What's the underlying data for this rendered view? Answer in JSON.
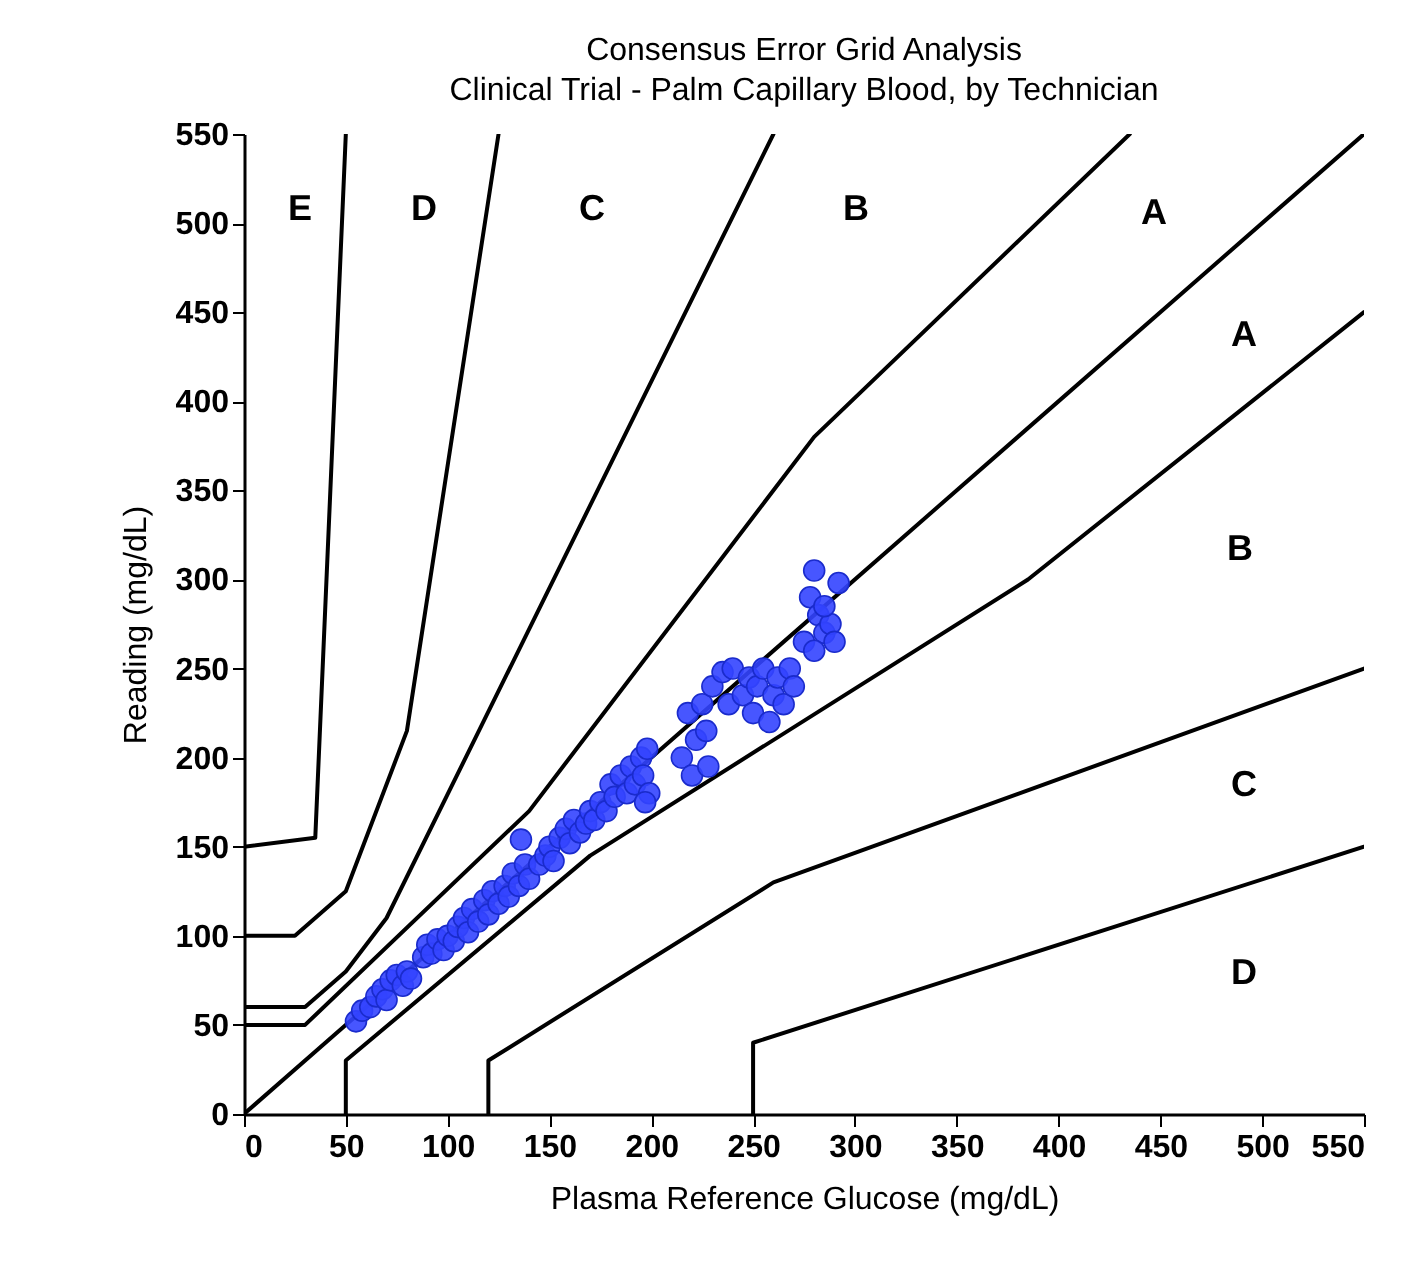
{
  "chart_data": {
    "type": "scatter",
    "title": "Consensus Error Grid Analysis",
    "subtitle": "Clinical Trial - Palm Capillary Blood, by Technician",
    "xlabel": "Plasma Reference Glucose (mg/dL)",
    "ylabel": "Reading (mg/dL)",
    "xlim": [
      0,
      550
    ],
    "ylim": [
      0,
      550
    ],
    "xticks": [
      0,
      50,
      100,
      150,
      200,
      250,
      300,
      350,
      400,
      450,
      500,
      550
    ],
    "yticks": [
      0,
      50,
      100,
      150,
      200,
      250,
      300,
      350,
      400,
      450,
      500,
      550
    ],
    "grid": false,
    "series": [
      {
        "type": "line",
        "color": "#000000",
        "x": [
          0,
          550
        ],
        "values": [
          0,
          550
        ]
      },
      {
        "type": "line",
        "color": "#000000",
        "x": [
          0,
          30,
          140,
          280,
          435
        ],
        "values": [
          50,
          50,
          170,
          380,
          550
        ]
      },
      {
        "type": "line",
        "color": "#000000",
        "x": [
          50,
          50,
          170,
          385,
          550
        ],
        "values": [
          0,
          30,
          145,
          300,
          450
        ]
      },
      {
        "type": "line",
        "color": "#000000",
        "x": [
          0,
          30,
          50,
          70,
          260
        ],
        "values": [
          60,
          60,
          80,
          110,
          550
        ]
      },
      {
        "type": "line",
        "color": "#000000",
        "x": [
          120,
          120,
          260,
          550
        ],
        "values": [
          0,
          30,
          130,
          250
        ]
      },
      {
        "type": "line",
        "color": "#000000",
        "x": [
          0,
          25,
          50,
          80,
          125
        ],
        "values": [
          100,
          100,
          125,
          215,
          550
        ]
      },
      {
        "type": "line",
        "color": "#000000",
        "x": [
          250,
          250,
          550
        ],
        "values": [
          0,
          40,
          150
        ]
      },
      {
        "type": "line",
        "color": "#000000",
        "x": [
          0,
          35,
          50
        ],
        "values": [
          150,
          155,
          550
        ]
      },
      {
        "marker": "circle",
        "color": "#3344ff",
        "x": [
          55,
          58,
          62,
          65,
          68,
          70,
          72,
          75,
          78,
          80,
          82,
          88,
          90,
          92,
          95,
          98,
          100,
          103,
          105,
          108,
          110,
          112,
          115,
          118,
          120,
          122,
          125,
          128,
          130,
          132,
          135,
          136,
          138,
          140,
          145,
          148,
          150,
          152,
          155,
          158,
          160,
          162,
          165,
          168,
          170,
          172,
          175,
          178,
          180,
          182,
          185,
          188,
          190,
          192,
          195,
          196,
          198,
          199,
          197,
          215,
          218,
          220,
          222,
          225,
          227,
          228,
          230,
          235,
          238,
          240,
          245,
          248,
          250,
          252,
          255,
          258,
          260,
          262,
          265,
          268,
          270,
          275,
          278,
          280,
          282,
          285,
          288,
          290,
          292,
          285,
          280
        ],
        "values": [
          52,
          58,
          60,
          66,
          70,
          64,
          75,
          78,
          72,
          80,
          76,
          88,
          95,
          90,
          98,
          92,
          100,
          97,
          105,
          110,
          102,
          115,
          108,
          120,
          112,
          125,
          118,
          128,
          122,
          135,
          128,
          154,
          140,
          132,
          140,
          145,
          150,
          142,
          155,
          160,
          152,
          165,
          158,
          163,
          170,
          165,
          175,
          170,
          185,
          178,
          190,
          180,
          195,
          185,
          200,
          190,
          205,
          180,
          175,
          200,
          225,
          190,
          210,
          230,
          215,
          195,
          240,
          248,
          230,
          250,
          235,
          245,
          225,
          240,
          250,
          220,
          235,
          245,
          230,
          250,
          240,
          265,
          290,
          305,
          280,
          270,
          275,
          265,
          298,
          285,
          260
        ]
      }
    ],
    "annotations": [
      "E",
      "D",
      "C",
      "B",
      "A",
      "A",
      "B",
      "C",
      "D"
    ]
  }
}
